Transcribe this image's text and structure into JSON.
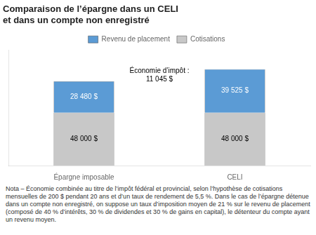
{
  "chart_data": {
    "type": "bar",
    "title": [
      "Comparaison de l’épargne dans un CELI",
      "et dans un compte non enregistré"
    ],
    "categories": [
      "Épargne imposable",
      "CELI"
    ],
    "stacked": true,
    "series": [
      {
        "name": "Cotisations",
        "color": "#c8c8c8",
        "values": [
          48000,
          48000
        ],
        "value_labels": [
          "48 000 $",
          "48 000 $"
        ]
      },
      {
        "name": "Revenu de placement",
        "color": "#5b9bd5",
        "values": [
          28480,
          39525
        ],
        "value_labels": [
          "28 480 $",
          "39 525 $"
        ]
      }
    ],
    "ylim": [
      0,
      105000
    ],
    "grid": false,
    "tick_labels": "x",
    "data_labels": true,
    "legend": "top",
    "annotations": [
      "Économie d’impôt :\n11 045 $"
    ],
    "footnote": "Nota – Économie combinée au titre de l’impôt fédéral et provincial, selon l’hypothèse de cotisations mensuelles de 200 $ pendant 20 ans et d’un taux de rendement de 5,5 %. Dans le cas de l’épargne détenue dans un compte non enregistré, on suppose un taux d’imposition moyen de 21 % sur le revenu de placement (composé de 40 % d’intérêts, 30 % de dividendes et 30 % de gains en capital), le détenteur du compte ayant un revenu moyen."
  }
}
